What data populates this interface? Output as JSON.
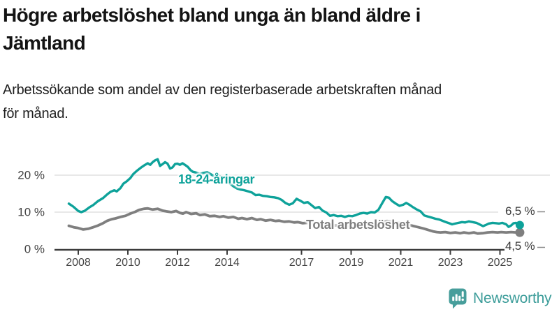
{
  "header": {
    "title_lines": [
      "Högre arbetslöshet bland unga än bland äldre i",
      "Jämtland"
    ],
    "subtitle_lines": [
      "Arbetssökande som andel av den registerbaserade arbetskraften månad",
      "för månad."
    ]
  },
  "chart_data": {
    "type": "line",
    "title": "Högre arbetslöshet bland unga än bland äldre i Jämtland",
    "subtitle": "Arbetssökande som andel av den registerbaserade arbetskraften månad för månad.",
    "unit": "%",
    "xlim": [
      2007.4,
      2026.2
    ],
    "ylim": [
      0,
      26
    ],
    "grid": "horizontal",
    "legend_position": "inline-labels",
    "x_ticks": [
      {
        "value": 2008,
        "label": "2008"
      },
      {
        "value": 2010,
        "label": "2010"
      },
      {
        "value": 2012,
        "label": "2012"
      },
      {
        "value": 2014,
        "label": "2014"
      },
      {
        "value": 2017,
        "label": "2017"
      },
      {
        "value": 2019,
        "label": "2019"
      },
      {
        "value": 2021,
        "label": "2021"
      },
      {
        "value": 2023,
        "label": "2023"
      },
      {
        "value": 2025,
        "label": "2025"
      }
    ],
    "y_ticks": [
      {
        "value": 0,
        "label": "0 %"
      },
      {
        "value": 10,
        "label": "10 %"
      },
      {
        "value": 20,
        "label": "20 %"
      }
    ],
    "series": [
      {
        "name": "18-24-åringar",
        "color": "#0ea29a",
        "end_label": "6,5 %",
        "end_value": 6.5,
        "points": [
          [
            2007.62,
            12.3
          ],
          [
            2007.8,
            11.5
          ],
          [
            2008.0,
            10.3
          ],
          [
            2008.12,
            10.0
          ],
          [
            2008.27,
            10.4
          ],
          [
            2008.45,
            11.3
          ],
          [
            2008.6,
            11.9
          ],
          [
            2008.8,
            13.0
          ],
          [
            2009.0,
            13.8
          ],
          [
            2009.15,
            14.7
          ],
          [
            2009.3,
            15.5
          ],
          [
            2009.45,
            15.9
          ],
          [
            2009.55,
            15.6
          ],
          [
            2009.7,
            16.5
          ],
          [
            2009.82,
            17.7
          ],
          [
            2009.95,
            18.3
          ],
          [
            2010.1,
            19.2
          ],
          [
            2010.22,
            20.3
          ],
          [
            2010.35,
            21.1
          ],
          [
            2010.5,
            21.9
          ],
          [
            2010.65,
            22.6
          ],
          [
            2010.8,
            23.2
          ],
          [
            2010.9,
            22.8
          ],
          [
            2011.0,
            23.5
          ],
          [
            2011.1,
            24.0
          ],
          [
            2011.2,
            24.3
          ],
          [
            2011.3,
            22.5
          ],
          [
            2011.42,
            23.1
          ],
          [
            2011.5,
            23.5
          ],
          [
            2011.6,
            23.1
          ],
          [
            2011.7,
            21.8
          ],
          [
            2011.8,
            22.1
          ],
          [
            2011.9,
            23.0
          ],
          [
            2012.0,
            23.1
          ],
          [
            2012.1,
            22.8
          ],
          [
            2012.2,
            23.2
          ],
          [
            2012.32,
            22.7
          ],
          [
            2012.42,
            22.2
          ],
          [
            2012.52,
            21.4
          ],
          [
            2012.62,
            20.9
          ],
          [
            2012.75,
            20.7
          ],
          [
            2012.9,
            20.3
          ],
          [
            2013.05,
            20.6
          ],
          [
            2013.2,
            20.8
          ],
          [
            2013.35,
            20.2
          ],
          [
            2013.5,
            19.6
          ],
          [
            2013.65,
            19.9
          ],
          [
            2013.8,
            19.3
          ],
          [
            2013.95,
            18.8
          ],
          [
            2014.1,
            17.8
          ],
          [
            2014.25,
            17.0
          ],
          [
            2014.4,
            16.4
          ],
          [
            2014.55,
            16.1
          ],
          [
            2014.7,
            15.9
          ],
          [
            2014.85,
            15.6
          ],
          [
            2015.0,
            15.3
          ],
          [
            2015.15,
            14.6
          ],
          [
            2015.3,
            14.7
          ],
          [
            2015.45,
            14.4
          ],
          [
            2015.6,
            14.3
          ],
          [
            2015.75,
            14.1
          ],
          [
            2015.9,
            14.0
          ],
          [
            2016.05,
            13.8
          ],
          [
            2016.2,
            13.3
          ],
          [
            2016.35,
            12.5
          ],
          [
            2016.5,
            12.0
          ],
          [
            2016.65,
            12.4
          ],
          [
            2016.8,
            13.6
          ],
          [
            2016.95,
            13.1
          ],
          [
            2017.1,
            12.5
          ],
          [
            2017.25,
            12.7
          ],
          [
            2017.4,
            11.9
          ],
          [
            2017.55,
            11.1
          ],
          [
            2017.7,
            11.4
          ],
          [
            2017.85,
            10.4
          ],
          [
            2018.0,
            9.9
          ],
          [
            2018.15,
            9.0
          ],
          [
            2018.3,
            9.2
          ],
          [
            2018.45,
            8.9
          ],
          [
            2018.6,
            9.0
          ],
          [
            2018.75,
            8.7
          ],
          [
            2018.9,
            9.0
          ],
          [
            2019.05,
            8.9
          ],
          [
            2019.2,
            9.2
          ],
          [
            2019.35,
            9.6
          ],
          [
            2019.5,
            9.8
          ],
          [
            2019.65,
            9.6
          ],
          [
            2019.8,
            10.0
          ],
          [
            2019.95,
            9.9
          ],
          [
            2020.1,
            10.6
          ],
          [
            2020.25,
            12.4
          ],
          [
            2020.4,
            14.1
          ],
          [
            2020.52,
            13.9
          ],
          [
            2020.65,
            13.0
          ],
          [
            2020.8,
            12.3
          ],
          [
            2020.95,
            11.7
          ],
          [
            2021.1,
            12.0
          ],
          [
            2021.22,
            12.5
          ],
          [
            2021.35,
            12.0
          ],
          [
            2021.5,
            11.3
          ],
          [
            2021.65,
            10.7
          ],
          [
            2021.8,
            10.2
          ],
          [
            2021.95,
            9.1
          ],
          [
            2022.1,
            8.8
          ],
          [
            2022.25,
            8.5
          ],
          [
            2022.4,
            8.2
          ],
          [
            2022.55,
            8.0
          ],
          [
            2022.7,
            7.6
          ],
          [
            2022.82,
            7.3
          ],
          [
            2022.95,
            7.0
          ],
          [
            2023.07,
            6.7
          ],
          [
            2023.2,
            6.9
          ],
          [
            2023.33,
            7.1
          ],
          [
            2023.47,
            7.3
          ],
          [
            2023.6,
            7.2
          ],
          [
            2023.75,
            7.5
          ],
          [
            2023.9,
            7.3
          ],
          [
            2024.05,
            7.1
          ],
          [
            2024.2,
            6.6
          ],
          [
            2024.32,
            6.2
          ],
          [
            2024.42,
            6.5
          ],
          [
            2024.55,
            6.9
          ],
          [
            2024.7,
            7.1
          ],
          [
            2024.85,
            7.0
          ],
          [
            2024.97,
            6.9
          ],
          [
            2025.1,
            7.1
          ],
          [
            2025.25,
            6.7
          ],
          [
            2025.35,
            6.0
          ],
          [
            2025.45,
            6.4
          ],
          [
            2025.55,
            7.0
          ],
          [
            2025.65,
            7.1
          ],
          [
            2025.8,
            6.5
          ]
        ]
      },
      {
        "name": "Total arbetslöshet",
        "color": "#7f7f7f",
        "end_label": "4,5 %",
        "end_value": 4.5,
        "points": [
          [
            2007.62,
            6.3
          ],
          [
            2007.82,
            5.9
          ],
          [
            2008.0,
            5.7
          ],
          [
            2008.2,
            5.3
          ],
          [
            2008.4,
            5.5
          ],
          [
            2008.6,
            5.9
          ],
          [
            2008.8,
            6.4
          ],
          [
            2009.0,
            7.0
          ],
          [
            2009.15,
            7.6
          ],
          [
            2009.35,
            8.1
          ],
          [
            2009.5,
            8.3
          ],
          [
            2009.7,
            8.7
          ],
          [
            2009.9,
            9.0
          ],
          [
            2010.1,
            9.6
          ],
          [
            2010.3,
            10.1
          ],
          [
            2010.45,
            10.6
          ],
          [
            2010.65,
            10.9
          ],
          [
            2010.8,
            11.0
          ],
          [
            2011.0,
            10.7
          ],
          [
            2011.2,
            10.9
          ],
          [
            2011.4,
            10.4
          ],
          [
            2011.55,
            10.2
          ],
          [
            2011.75,
            10.0
          ],
          [
            2011.95,
            10.3
          ],
          [
            2012.1,
            9.8
          ],
          [
            2012.22,
            9.6
          ],
          [
            2012.35,
            10.0
          ],
          [
            2012.55,
            9.5
          ],
          [
            2012.75,
            9.7
          ],
          [
            2012.9,
            9.2
          ],
          [
            2013.1,
            9.4
          ],
          [
            2013.3,
            8.9
          ],
          [
            2013.5,
            9.0
          ],
          [
            2013.7,
            8.7
          ],
          [
            2013.85,
            8.9
          ],
          [
            2014.05,
            8.5
          ],
          [
            2014.25,
            8.7
          ],
          [
            2014.45,
            8.2
          ],
          [
            2014.6,
            8.4
          ],
          [
            2014.8,
            8.1
          ],
          [
            2015.0,
            8.4
          ],
          [
            2015.2,
            7.9
          ],
          [
            2015.35,
            8.1
          ],
          [
            2015.55,
            7.7
          ],
          [
            2015.75,
            7.9
          ],
          [
            2015.95,
            7.6
          ],
          [
            2016.1,
            7.7
          ],
          [
            2016.3,
            7.4
          ],
          [
            2016.5,
            7.5
          ],
          [
            2016.7,
            7.2
          ],
          [
            2016.85,
            7.3
          ],
          [
            2017.05,
            7.0
          ],
          [
            2017.2,
            7.1
          ],
          [
            2017.5,
            6.9
          ],
          [
            2017.8,
            6.7
          ],
          [
            2018.1,
            6.5
          ],
          [
            2018.4,
            6.4
          ],
          [
            2018.7,
            6.3
          ],
          [
            2019.0,
            6.2
          ],
          [
            2019.3,
            6.3
          ],
          [
            2019.6,
            6.4
          ],
          [
            2019.9,
            6.6
          ],
          [
            2020.2,
            7.2
          ],
          [
            2020.45,
            7.6
          ],
          [
            2020.7,
            7.3
          ],
          [
            2021.0,
            7.0
          ],
          [
            2021.3,
            6.6
          ],
          [
            2021.6,
            6.1
          ],
          [
            2021.9,
            5.6
          ],
          [
            2022.1,
            5.2
          ],
          [
            2022.3,
            4.8
          ],
          [
            2022.45,
            4.6
          ],
          [
            2022.6,
            4.5
          ],
          [
            2022.8,
            4.6
          ],
          [
            2023.0,
            4.35
          ],
          [
            2023.2,
            4.5
          ],
          [
            2023.4,
            4.3
          ],
          [
            2023.55,
            4.5
          ],
          [
            2023.75,
            4.3
          ],
          [
            2023.95,
            4.5
          ],
          [
            2024.1,
            4.2
          ],
          [
            2024.3,
            4.3
          ],
          [
            2024.5,
            4.5
          ],
          [
            2024.7,
            4.6
          ],
          [
            2024.9,
            4.5
          ],
          [
            2025.05,
            4.6
          ],
          [
            2025.25,
            4.5
          ],
          [
            2025.45,
            4.6
          ],
          [
            2025.65,
            4.5
          ],
          [
            2025.8,
            4.5
          ]
        ]
      }
    ],
    "colors": {
      "young_line": "#0ea29a",
      "total_line": "#7f7f7f",
      "gridline": "#d9d9d9",
      "axis": "#3c3c3c",
      "tick_label": "#454545"
    }
  },
  "logo": {
    "wordmark": "Newsworthy",
    "color": "#3d9d9a",
    "icon": "bar-chart-speech-bubble-icon"
  }
}
